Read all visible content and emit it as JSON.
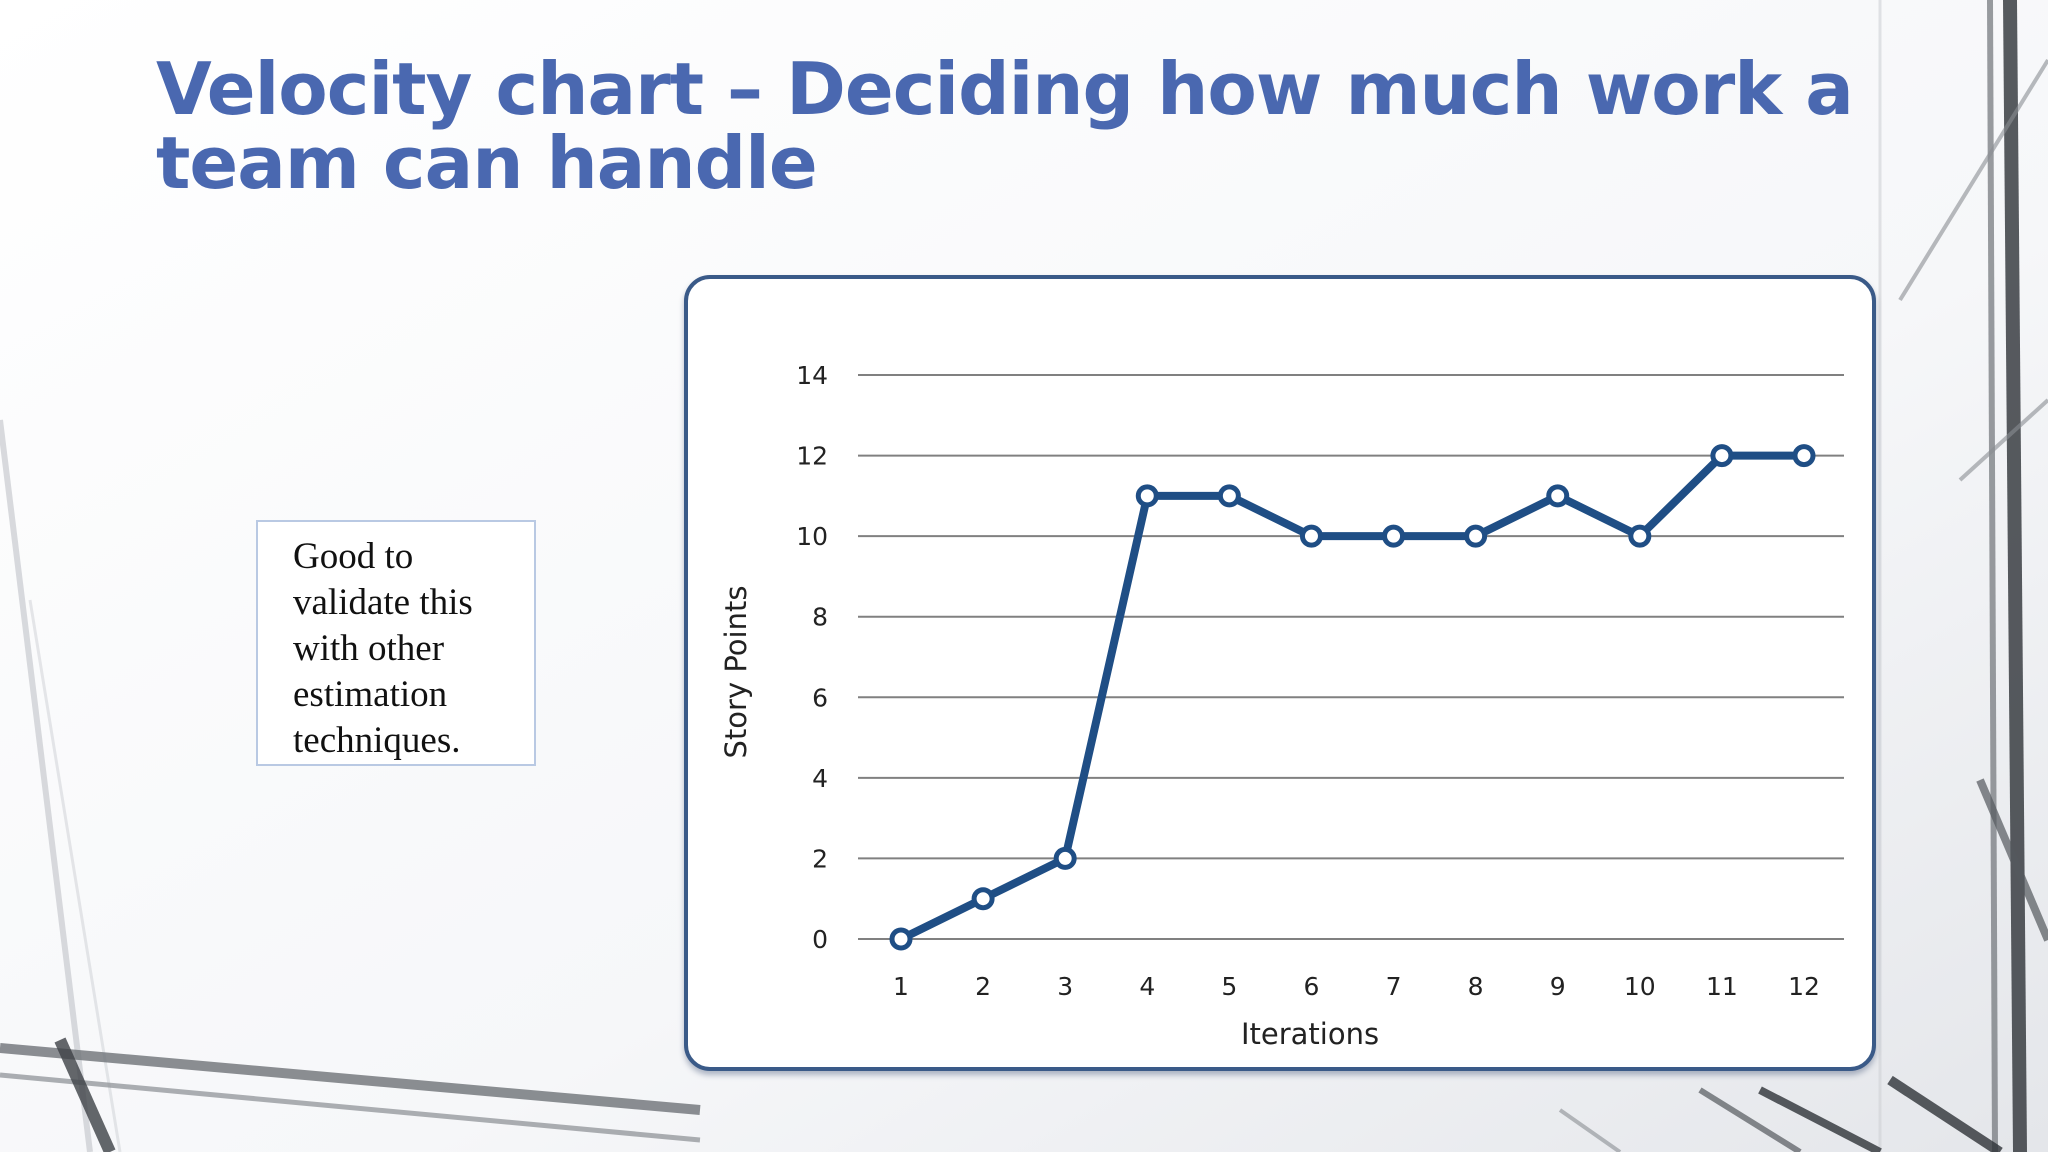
{
  "slide": {
    "title": "Velocity chart – Deciding how much work a team can handle",
    "note": "Good to validate this with other estimation techniques."
  },
  "colors": {
    "title": "#4a68b0",
    "line": "#1f4e85",
    "frame": "#3a5a88",
    "grid": "#808080"
  },
  "chart_data": {
    "type": "line",
    "title": "",
    "xlabel": "Iterations",
    "ylabel": "Story Points",
    "categories": [
      "1",
      "2",
      "3",
      "4",
      "5",
      "6",
      "7",
      "8",
      "9",
      "10",
      "11",
      "12"
    ],
    "series": [
      {
        "values": [
          0,
          1,
          2,
          11,
          11,
          10,
          10,
          10,
          11,
          10,
          12,
          12
        ]
      }
    ],
    "ylim": [
      0,
      14
    ],
    "yticks": [
      0,
      2,
      4,
      6,
      8,
      10,
      12,
      14
    ],
    "grid": true,
    "markers": "hollow-circle",
    "legend": "none"
  }
}
